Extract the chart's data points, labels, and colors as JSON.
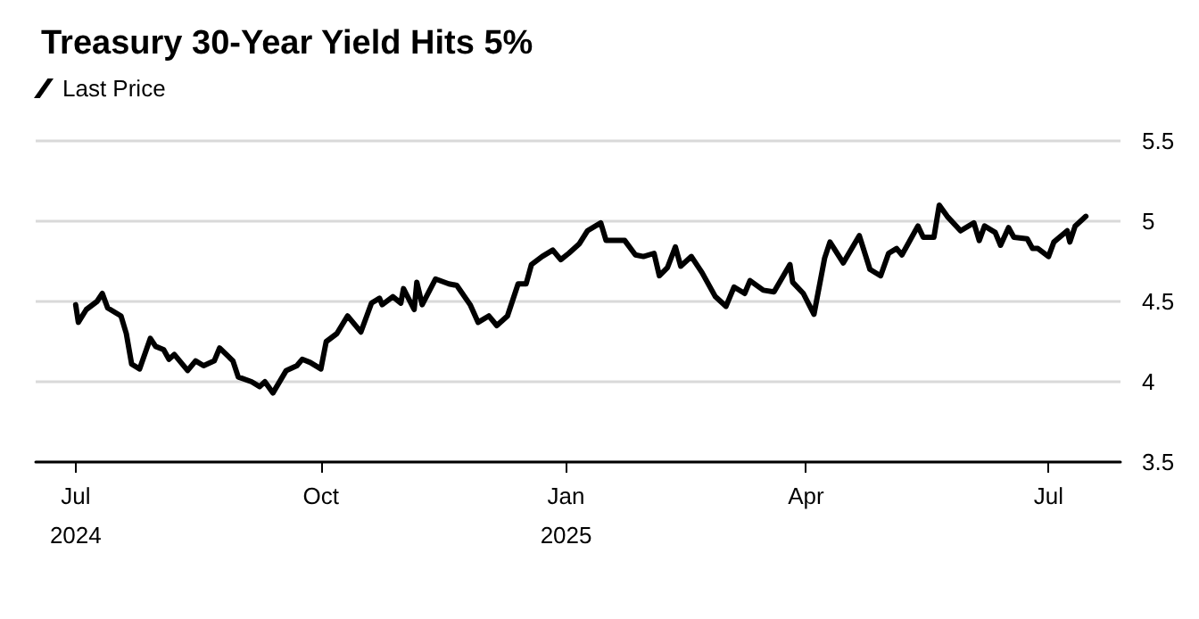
{
  "chart_data": {
    "type": "line",
    "title": "Treasury 30-Year Yield Hits 5%",
    "x": [
      "2024-07-01",
      "2024-07-02",
      "2024-07-05",
      "2024-07-09",
      "2024-07-11",
      "2024-07-13",
      "2024-07-18",
      "2024-07-20",
      "2024-07-22",
      "2024-07-25",
      "2024-07-29",
      "2024-07-31",
      "2024-08-03",
      "2024-08-05",
      "2024-08-07",
      "2024-08-12",
      "2024-08-15",
      "2024-08-18",
      "2024-08-22",
      "2024-08-24",
      "2024-08-29",
      "2024-08-31",
      "2024-09-05",
      "2024-09-08",
      "2024-09-10",
      "2024-09-13",
      "2024-09-18",
      "2024-09-22",
      "2024-09-24",
      "2024-09-27",
      "2024-10-01",
      "2024-10-03",
      "2024-10-07",
      "2024-10-11",
      "2024-10-16",
      "2024-10-20",
      "2024-10-23",
      "2024-10-24",
      "2024-10-28",
      "2024-10-31",
      "2024-11-01",
      "2024-11-05",
      "2024-11-06",
      "2024-11-08",
      "2024-11-13",
      "2024-11-18",
      "2024-11-21",
      "2024-11-26",
      "2024-11-29",
      "2024-12-03",
      "2024-12-06",
      "2024-12-10",
      "2024-12-14",
      "2024-12-17",
      "2024-12-19",
      "2024-12-23",
      "2024-12-27",
      "2024-12-30",
      "2025-01-02",
      "2025-01-06",
      "2025-01-09",
      "2025-01-14",
      "2025-01-16",
      "2025-01-23",
      "2025-01-27",
      "2025-01-30",
      "2025-02-03",
      "2025-02-05",
      "2025-02-08",
      "2025-02-11",
      "2025-02-13",
      "2025-02-17",
      "2025-02-21",
      "2025-02-26",
      "2025-03-02",
      "2025-03-05",
      "2025-03-09",
      "2025-03-11",
      "2025-03-16",
      "2025-03-20",
      "2025-03-26",
      "2025-03-27",
      "2025-03-31",
      "2025-04-04",
      "2025-04-08",
      "2025-04-10",
      "2025-04-15",
      "2025-04-21",
      "2025-04-25",
      "2025-04-29",
      "2025-05-02",
      "2025-05-05",
      "2025-05-07",
      "2025-05-09",
      "2025-05-13",
      "2025-05-15",
      "2025-05-19",
      "2025-05-21",
      "2025-05-24",
      "2025-05-29",
      "2025-06-03",
      "2025-06-05",
      "2025-06-07",
      "2025-06-11",
      "2025-06-13",
      "2025-06-16",
      "2025-06-18",
      "2025-06-23",
      "2025-06-25",
      "2025-06-27",
      "2025-07-01",
      "2025-07-03",
      "2025-07-08",
      "2025-07-09",
      "2025-07-11",
      "2025-07-15"
    ],
    "series": [
      {
        "name": "Last Price",
        "color": "#000000",
        "values": [
          4.48,
          4.37,
          4.45,
          4.5,
          4.55,
          4.46,
          4.41,
          4.3,
          4.11,
          4.08,
          4.27,
          4.22,
          4.2,
          4.14,
          4.17,
          4.07,
          4.13,
          4.1,
          4.13,
          4.21,
          4.13,
          4.03,
          4.0,
          3.97,
          4.0,
          3.93,
          4.07,
          4.1,
          4.14,
          4.12,
          4.08,
          4.25,
          4.3,
          4.41,
          4.31,
          4.49,
          4.52,
          4.48,
          4.53,
          4.49,
          4.58,
          4.45,
          4.62,
          4.48,
          4.64,
          4.61,
          4.6,
          4.48,
          4.37,
          4.41,
          4.35,
          4.41,
          4.61,
          4.61,
          4.73,
          4.78,
          4.82,
          4.76,
          4.8,
          4.86,
          4.94,
          4.99,
          4.88,
          4.88,
          4.79,
          4.78,
          4.8,
          4.66,
          4.71,
          4.84,
          4.72,
          4.78,
          4.68,
          4.53,
          4.47,
          4.59,
          4.55,
          4.63,
          4.57,
          4.56,
          4.73,
          4.62,
          4.55,
          4.42,
          4.77,
          4.87,
          4.74,
          4.91,
          4.7,
          4.66,
          4.8,
          4.83,
          4.79,
          4.85,
          4.97,
          4.9,
          4.9,
          5.1,
          5.03,
          4.94,
          4.99,
          4.88,
          4.97,
          4.93,
          4.85,
          4.96,
          4.9,
          4.89,
          4.83,
          4.83,
          4.78,
          4.87,
          4.94,
          4.87,
          4.97,
          5.03
        ]
      }
    ],
    "xlim": [
      "2024-06-16",
      "2025-07-28"
    ],
    "xticks": [
      {
        "value": "2024-07-01",
        "label": "Jul\n2024"
      },
      {
        "value": "2024-10-01",
        "label": "Oct"
      },
      {
        "value": "2025-01-01",
        "label": "Jan\n2025"
      },
      {
        "value": "2025-04-01",
        "label": "Apr"
      },
      {
        "value": "2025-07-01",
        "label": "Jul"
      }
    ],
    "ylim": [
      3.5,
      5.5
    ],
    "yticks": [
      3.5,
      4,
      4.5,
      5,
      5.5
    ],
    "grid": "y",
    "legend": "top left",
    "marker": "none",
    "line_style": "solid"
  }
}
